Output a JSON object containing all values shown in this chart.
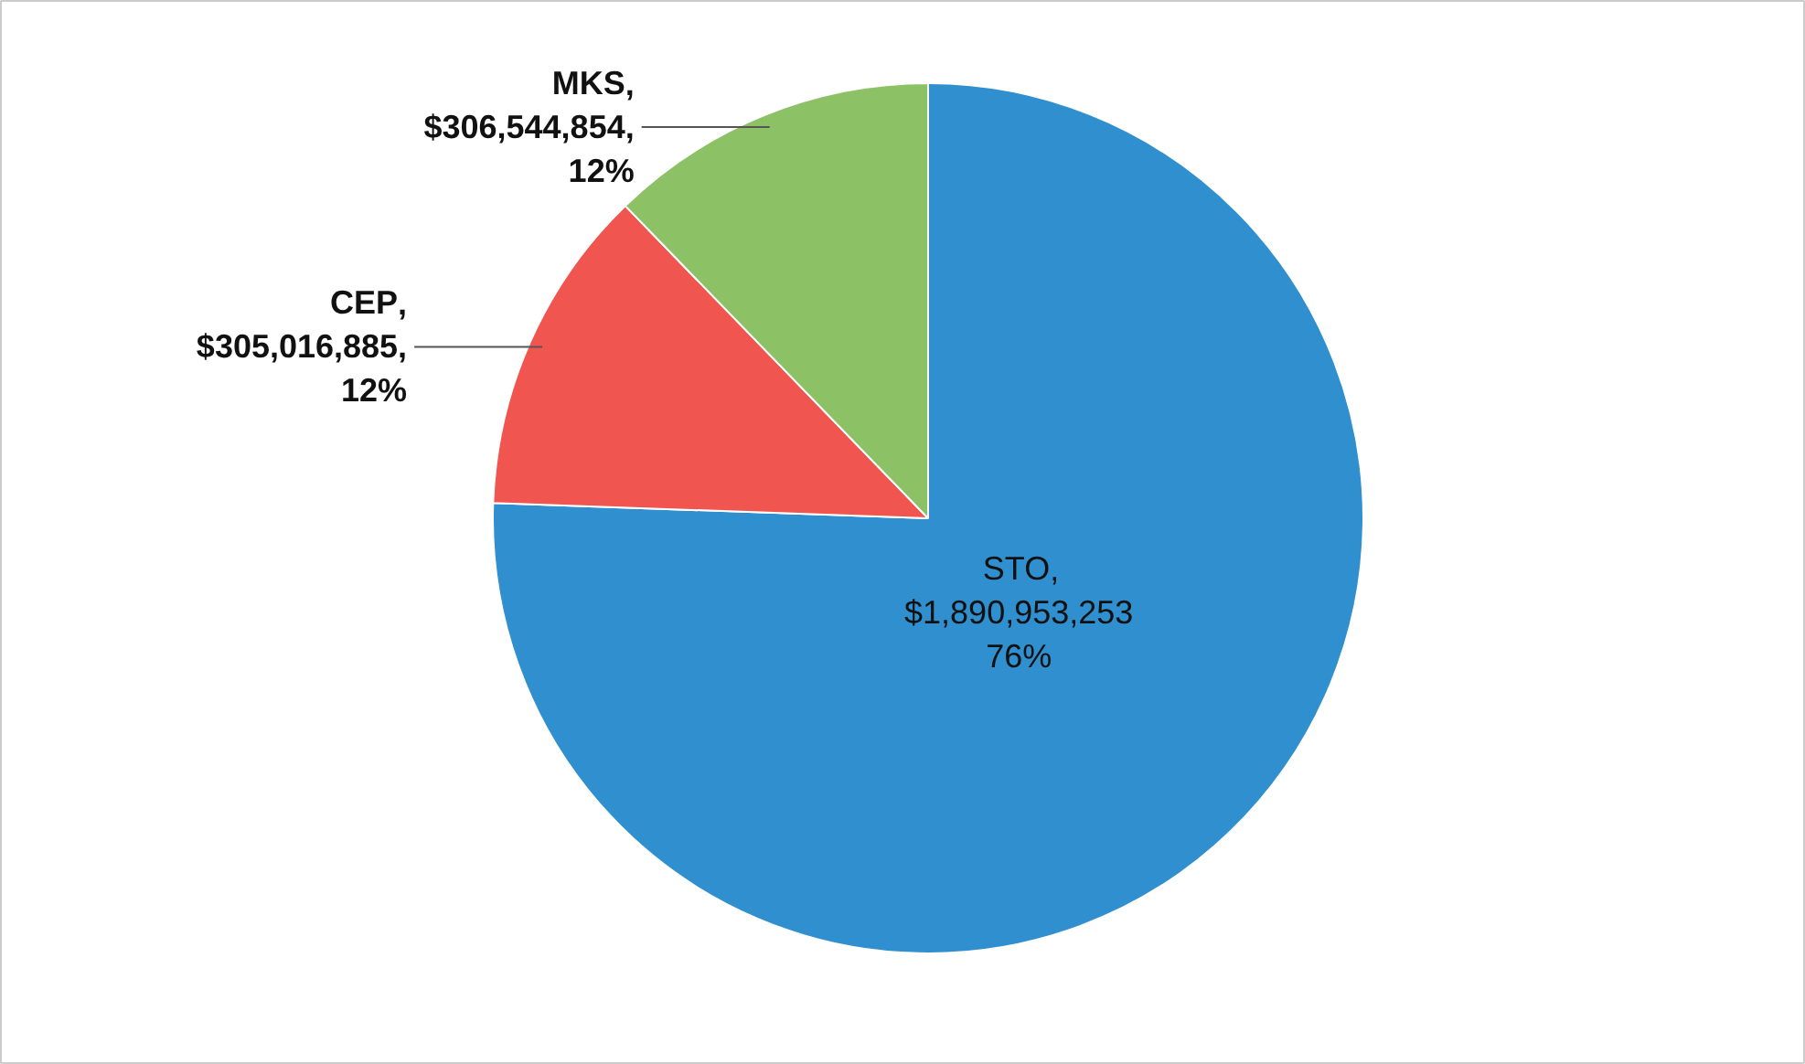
{
  "chart_data": {
    "type": "pie",
    "categories": [
      "STO",
      "CEP",
      "MKS"
    ],
    "values": [
      1890953253,
      305016885,
      306544854
    ],
    "colors": [
      "#2f8fcf",
      "#f0564f",
      "#8dc166"
    ],
    "value_labels": [
      ",\n$1,890,953,253\n76%",
      ",\n$305,016,885,\n12%",
      ",\n$306,544,854,\n12%"
    ]
  }
}
